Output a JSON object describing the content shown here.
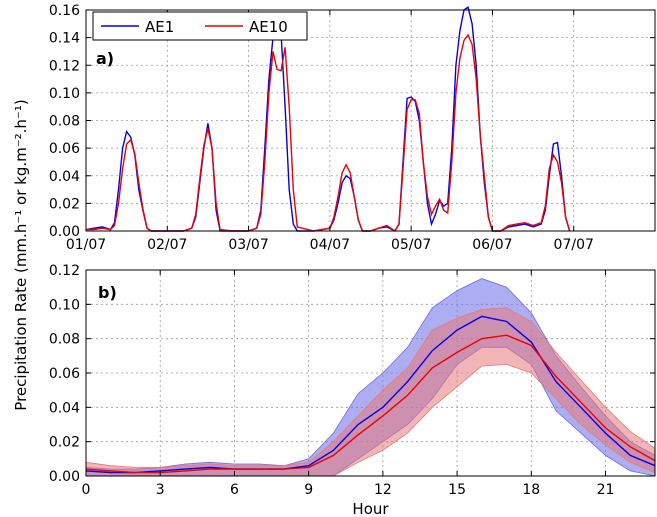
{
  "colors": {
    "ae1": "#0000ee",
    "ae10": "#ee0000",
    "ae1_band": "#6a6ae8",
    "ae10_band": "#e87878"
  },
  "ylabel": "Precipitation Rate (mm.h⁻¹ or kg.m⁻².h⁻¹)",
  "legend": {
    "entries": [
      "AE1",
      "AE10"
    ],
    "location": "top-left"
  },
  "chart_data": [
    {
      "panel_label": "a)",
      "type": "line",
      "xlim": [
        0,
        7
      ],
      "ylim": [
        0,
        0.16
      ],
      "grid": true,
      "xtick_values": [
        0,
        1,
        2,
        3,
        4,
        5,
        6
      ],
      "xtick_labels": [
        "01/07",
        "02/07",
        "03/07",
        "04/07",
        "05/07",
        "06/07",
        "07/07"
      ],
      "ytick_values": [
        0.0,
        0.02,
        0.04,
        0.06,
        0.08,
        0.1,
        0.12,
        0.14,
        0.16
      ],
      "ytick_labels": [
        "0.00",
        "0.02",
        "0.04",
        "0.06",
        "0.08",
        "0.10",
        "0.12",
        "0.14",
        "0.16"
      ],
      "series": [
        {
          "name": "AE1",
          "points": [
            [
              0,
              0.001
            ],
            [
              0.1,
              0.002
            ],
            [
              0.2,
              0.003
            ],
            [
              0.3,
              0.001
            ],
            [
              0.35,
              0.006
            ],
            [
              0.4,
              0.03
            ],
            [
              0.45,
              0.06
            ],
            [
              0.5,
              0.072
            ],
            [
              0.55,
              0.068
            ],
            [
              0.6,
              0.055
            ],
            [
              0.65,
              0.03
            ],
            [
              0.7,
              0.015
            ],
            [
              0.75,
              0.002
            ],
            [
              0.8,
              0.0
            ],
            [
              1.0,
              0.0
            ],
            [
              1.2,
              0.0
            ],
            [
              1.3,
              0.002
            ],
            [
              1.35,
              0.01
            ],
            [
              1.4,
              0.035
            ],
            [
              1.45,
              0.06
            ],
            [
              1.5,
              0.078
            ],
            [
              1.55,
              0.06
            ],
            [
              1.6,
              0.015
            ],
            [
              1.65,
              0.0
            ],
            [
              1.8,
              0.0
            ],
            [
              2.0,
              0.0
            ],
            [
              2.1,
              0.002
            ],
            [
              2.15,
              0.015
            ],
            [
              2.2,
              0.06
            ],
            [
              2.25,
              0.11
            ],
            [
              2.3,
              0.14
            ],
            [
              2.35,
              0.155
            ],
            [
              2.4,
              0.143
            ],
            [
              2.45,
              0.09
            ],
            [
              2.5,
              0.03
            ],
            [
              2.55,
              0.005
            ],
            [
              2.6,
              0.0
            ],
            [
              2.8,
              0.0
            ],
            [
              3.0,
              0.002
            ],
            [
              3.05,
              0.008
            ],
            [
              3.1,
              0.02
            ],
            [
              3.15,
              0.035
            ],
            [
              3.2,
              0.04
            ],
            [
              3.25,
              0.038
            ],
            [
              3.3,
              0.025
            ],
            [
              3.35,
              0.008
            ],
            [
              3.4,
              0.0
            ],
            [
              3.5,
              0.0
            ],
            [
              3.6,
              0.002
            ],
            [
              3.7,
              0.003
            ],
            [
              3.8,
              0.0
            ],
            [
              3.85,
              0.005
            ],
            [
              3.9,
              0.05
            ],
            [
              3.95,
              0.096
            ],
            [
              4.0,
              0.097
            ],
            [
              4.05,
              0.094
            ],
            [
              4.1,
              0.08
            ],
            [
              4.15,
              0.05
            ],
            [
              4.2,
              0.02
            ],
            [
              4.25,
              0.005
            ],
            [
              4.3,
              0.012
            ],
            [
              4.35,
              0.022
            ],
            [
              4.4,
              0.018
            ],
            [
              4.45,
              0.02
            ],
            [
              4.5,
              0.06
            ],
            [
              4.55,
              0.12
            ],
            [
              4.6,
              0.145
            ],
            [
              4.65,
              0.16
            ],
            [
              4.7,
              0.162
            ],
            [
              4.75,
              0.15
            ],
            [
              4.8,
              0.12
            ],
            [
              4.85,
              0.07
            ],
            [
              4.9,
              0.035
            ],
            [
              4.95,
              0.01
            ],
            [
              5.0,
              0.0
            ],
            [
              5.1,
              0.0
            ],
            [
              5.2,
              0.003
            ],
            [
              5.3,
              0.004
            ],
            [
              5.4,
              0.005
            ],
            [
              5.5,
              0.003
            ],
            [
              5.6,
              0.005
            ],
            [
              5.65,
              0.015
            ],
            [
              5.7,
              0.04
            ],
            [
              5.75,
              0.063
            ],
            [
              5.8,
              0.064
            ],
            [
              5.85,
              0.04
            ],
            [
              5.9,
              0.01
            ],
            [
              5.95,
              0.0
            ]
          ]
        },
        {
          "name": "AE10",
          "points": [
            [
              0,
              0.001
            ],
            [
              0.1,
              0.001
            ],
            [
              0.2,
              0.002
            ],
            [
              0.3,
              0.001
            ],
            [
              0.35,
              0.004
            ],
            [
              0.4,
              0.02
            ],
            [
              0.45,
              0.045
            ],
            [
              0.5,
              0.063
            ],
            [
              0.55,
              0.066
            ],
            [
              0.6,
              0.056
            ],
            [
              0.65,
              0.035
            ],
            [
              0.7,
              0.016
            ],
            [
              0.75,
              0.002
            ],
            [
              0.8,
              0.0
            ],
            [
              1.0,
              0.0
            ],
            [
              1.2,
              0.0
            ],
            [
              1.3,
              0.002
            ],
            [
              1.35,
              0.012
            ],
            [
              1.4,
              0.038
            ],
            [
              1.45,
              0.062
            ],
            [
              1.5,
              0.074
            ],
            [
              1.55,
              0.06
            ],
            [
              1.6,
              0.02
            ],
            [
              1.65,
              0.001
            ],
            [
              1.8,
              0.0
            ],
            [
              2.0,
              0.0
            ],
            [
              2.1,
              0.002
            ],
            [
              2.15,
              0.012
            ],
            [
              2.2,
              0.05
            ],
            [
              2.25,
              0.1
            ],
            [
              2.3,
              0.13
            ],
            [
              2.35,
              0.117
            ],
            [
              2.4,
              0.116
            ],
            [
              2.45,
              0.133
            ],
            [
              2.5,
              0.09
            ],
            [
              2.55,
              0.03
            ],
            [
              2.6,
              0.003
            ],
            [
              2.8,
              0.0
            ],
            [
              3.0,
              0.002
            ],
            [
              3.05,
              0.01
            ],
            [
              3.1,
              0.025
            ],
            [
              3.15,
              0.042
            ],
            [
              3.2,
              0.048
            ],
            [
              3.25,
              0.042
            ],
            [
              3.3,
              0.025
            ],
            [
              3.35,
              0.008
            ],
            [
              3.4,
              0.0
            ],
            [
              3.5,
              0.0
            ],
            [
              3.6,
              0.002
            ],
            [
              3.7,
              0.004
            ],
            [
              3.8,
              0.0
            ],
            [
              3.85,
              0.005
            ],
            [
              3.9,
              0.045
            ],
            [
              3.95,
              0.088
            ],
            [
              4.0,
              0.095
            ],
            [
              4.05,
              0.095
            ],
            [
              4.1,
              0.085
            ],
            [
              4.15,
              0.05
            ],
            [
              4.2,
              0.025
            ],
            [
              4.25,
              0.012
            ],
            [
              4.3,
              0.018
            ],
            [
              4.35,
              0.023
            ],
            [
              4.4,
              0.015
            ],
            [
              4.45,
              0.013
            ],
            [
              4.5,
              0.05
            ],
            [
              4.55,
              0.1
            ],
            [
              4.6,
              0.125
            ],
            [
              4.65,
              0.138
            ],
            [
              4.7,
              0.142
            ],
            [
              4.75,
              0.135
            ],
            [
              4.8,
              0.11
            ],
            [
              4.85,
              0.07
            ],
            [
              4.9,
              0.04
            ],
            [
              4.95,
              0.01
            ],
            [
              5.0,
              0.0
            ],
            [
              5.1,
              0.0
            ],
            [
              5.2,
              0.004
            ],
            [
              5.3,
              0.005
            ],
            [
              5.4,
              0.006
            ],
            [
              5.5,
              0.004
            ],
            [
              5.6,
              0.006
            ],
            [
              5.65,
              0.018
            ],
            [
              5.7,
              0.045
            ],
            [
              5.75,
              0.055
            ],
            [
              5.8,
              0.05
            ],
            [
              5.85,
              0.035
            ],
            [
              5.9,
              0.01
            ],
            [
              5.95,
              0.0
            ]
          ]
        }
      ]
    },
    {
      "panel_label": "b)",
      "type": "line",
      "xlabel": "Hour",
      "xlim": [
        0,
        23
      ],
      "ylim": [
        0,
        0.12
      ],
      "grid": true,
      "xtick_values": [
        0,
        3,
        6,
        9,
        12,
        15,
        18,
        21
      ],
      "xtick_labels": [
        "0",
        "3",
        "6",
        "9",
        "12",
        "15",
        "18",
        "21"
      ],
      "ytick_values": [
        0.0,
        0.02,
        0.04,
        0.06,
        0.08,
        0.1,
        0.12
      ],
      "ytick_labels": [
        "0.00",
        "0.02",
        "0.04",
        "0.06",
        "0.08",
        "0.10",
        "0.12"
      ],
      "x": [
        0,
        1,
        2,
        3,
        4,
        5,
        6,
        7,
        8,
        9,
        10,
        11,
        12,
        13,
        14,
        15,
        16,
        17,
        18,
        19,
        20,
        21,
        22,
        23
      ],
      "series": [
        {
          "name": "AE1",
          "mean": [
            0.003,
            0.002,
            0.002,
            0.003,
            0.004,
            0.005,
            0.004,
            0.004,
            0.004,
            0.006,
            0.015,
            0.03,
            0.04,
            0.055,
            0.073,
            0.085,
            0.093,
            0.09,
            0.078,
            0.055,
            0.04,
            0.025,
            0.012,
            0.006
          ],
          "lower": [
            0.0,
            0.0,
            0.0,
            0.0,
            0.0,
            0.0,
            0.0,
            0.0,
            0.0,
            0.0,
            0.0,
            0.01,
            0.02,
            0.03,
            0.045,
            0.065,
            0.075,
            0.075,
            0.065,
            0.038,
            0.025,
            0.012,
            0.003,
            0.0
          ],
          "upper": [
            0.005,
            0.004,
            0.004,
            0.005,
            0.007,
            0.008,
            0.007,
            0.007,
            0.006,
            0.01,
            0.025,
            0.048,
            0.06,
            0.075,
            0.098,
            0.108,
            0.115,
            0.11,
            0.095,
            0.07,
            0.052,
            0.035,
            0.02,
            0.012
          ]
        },
        {
          "name": "AE10",
          "mean": [
            0.004,
            0.003,
            0.002,
            0.002,
            0.003,
            0.004,
            0.004,
            0.004,
            0.004,
            0.005,
            0.012,
            0.024,
            0.035,
            0.047,
            0.063,
            0.072,
            0.08,
            0.082,
            0.076,
            0.058,
            0.043,
            0.028,
            0.017,
            0.009
          ],
          "lower": [
            0.0,
            0.0,
            0.0,
            0.0,
            0.0,
            0.0,
            0.0,
            0.0,
            0.0,
            0.0,
            0.0,
            0.008,
            0.015,
            0.025,
            0.04,
            0.052,
            0.064,
            0.065,
            0.06,
            0.045,
            0.03,
            0.018,
            0.008,
            0.002
          ],
          "upper": [
            0.008,
            0.006,
            0.005,
            0.005,
            0.006,
            0.007,
            0.006,
            0.006,
            0.006,
            0.008,
            0.02,
            0.035,
            0.05,
            0.063,
            0.085,
            0.092,
            0.097,
            0.098,
            0.09,
            0.072,
            0.056,
            0.04,
            0.026,
            0.016
          ]
        }
      ]
    }
  ]
}
